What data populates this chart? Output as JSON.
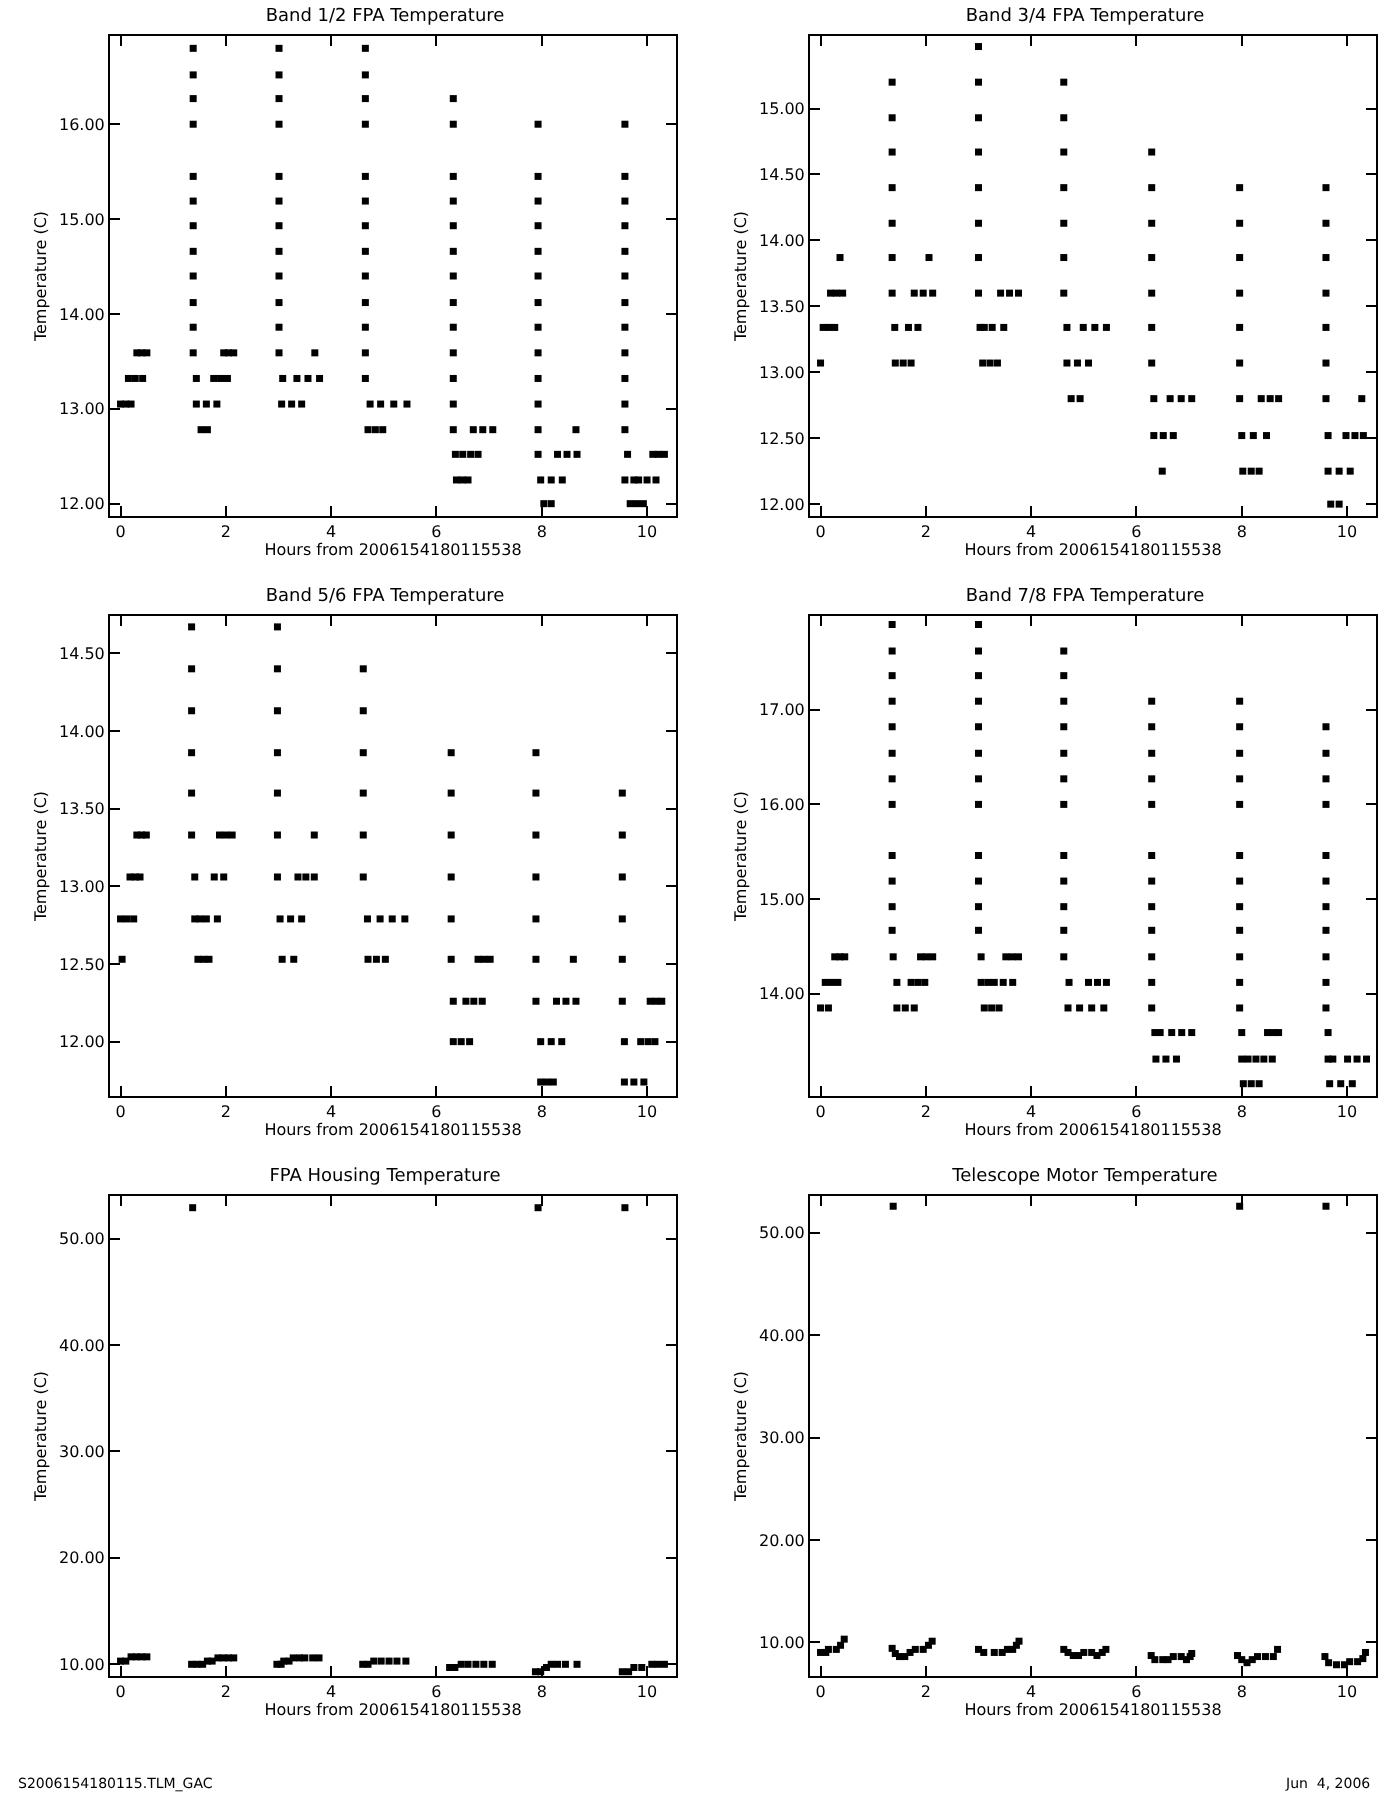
{
  "chart_data": [
    {
      "type": "scatter",
      "title": "Band 1/2 FPA Temperature",
      "xlabel": "Hours from 2006154180115538",
      "ylabel": "Temperature (C)",
      "marker": "square",
      "grid": false,
      "xlim": [
        -0.2,
        10.55
      ],
      "xticks": [
        0,
        2,
        4,
        6,
        8,
        10
      ],
      "ylim": [
        11.87,
        16.93
      ],
      "yticks": [
        {
          "value": 12,
          "label": "12.00"
        },
        {
          "value": 13,
          "label": "13.00"
        },
        {
          "value": 14,
          "label": "14.00"
        },
        {
          "value": 15,
          "label": "15.00"
        },
        {
          "value": 16,
          "label": "16.00"
        }
      ],
      "series": [
        {
          "color": "#000000",
          "x": [
            0,
            0.1,
            0.2,
            0.15,
            0.28,
            0.42,
            0.31,
            0.4,
            0.5
          ],
          "values": [
            13.05,
            13.05,
            13.05,
            13.32,
            13.32,
            13.32,
            13.59,
            13.59,
            13.59
          ]
        },
        {
          "color": "#000000",
          "x": [
            1.38,
            1.38,
            1.38,
            1.38,
            1.38,
            1.38,
            1.38,
            1.38,
            1.38,
            1.38,
            1.38,
            1.38,
            1.44
          ],
          "values": [
            16.8,
            16.52,
            16.27,
            16.0,
            15.45,
            15.19,
            14.93,
            14.66,
            14.4,
            14.12,
            13.86,
            13.59,
            13.32
          ]
        },
        {
          "color": "#000000",
          "x": [
            1.44,
            1.63,
            1.83,
            1.53,
            1.65,
            1.77,
            1.9,
            2.03,
            1.96,
            2.05,
            2.15
          ],
          "values": [
            13.05,
            13.05,
            13.05,
            12.78,
            12.78,
            13.32,
            13.32,
            13.32,
            13.59,
            13.59,
            13.59
          ]
        },
        {
          "color": "#000000",
          "x": [
            3.01,
            3.01,
            3.01,
            3.01,
            3.01,
            3.01,
            3.01,
            3.01,
            3.01,
            3.01,
            3.01,
            3.01,
            3.08
          ],
          "values": [
            16.8,
            16.52,
            16.27,
            16.0,
            15.45,
            15.19,
            14.93,
            14.66,
            14.4,
            14.12,
            13.86,
            13.59,
            13.32
          ]
        },
        {
          "color": "#000000",
          "x": [
            3.06,
            3.25,
            3.44,
            3.35,
            3.56,
            3.78,
            3.69
          ],
          "values": [
            13.05,
            13.05,
            13.05,
            13.32,
            13.32,
            13.32,
            13.59
          ]
        },
        {
          "color": "#000000",
          "x": [
            4.65,
            4.65,
            4.65,
            4.65,
            4.65,
            4.65,
            4.65,
            4.65,
            4.65,
            4.65,
            4.65,
            4.65,
            4.65,
            4.74
          ],
          "values": [
            16.8,
            16.52,
            16.27,
            16.0,
            15.45,
            15.19,
            14.93,
            14.66,
            14.4,
            14.12,
            13.86,
            13.59,
            13.32,
            13.05
          ]
        },
        {
          "color": "#000000",
          "x": [
            4.7,
            4.84,
            4.98,
            4.94,
            5.19,
            5.44
          ],
          "values": [
            12.78,
            12.78,
            12.78,
            13.05,
            13.05,
            13.05
          ]
        },
        {
          "color": "#000000",
          "x": [
            6.32,
            6.32,
            6.32,
            6.32,
            6.32,
            6.32,
            6.32,
            6.32,
            6.32,
            6.32,
            6.32,
            6.32,
            6.32
          ],
          "values": [
            16.27,
            16.0,
            15.45,
            15.19,
            14.93,
            14.66,
            14.4,
            14.12,
            13.86,
            13.59,
            13.32,
            13.05,
            12.78
          ]
        },
        {
          "color": "#000000",
          "x": [
            6.36,
            6.5,
            6.38,
            6.49,
            6.6,
            6.65,
            6.79,
            6.7,
            6.88,
            7.07
          ],
          "values": [
            12.52,
            12.52,
            12.25,
            12.25,
            12.25,
            12.52,
            12.52,
            12.78,
            12.78,
            12.78
          ]
        },
        {
          "color": "#000000",
          "x": [
            7.93,
            7.93,
            7.93,
            7.93,
            7.93,
            7.93,
            7.93,
            7.93,
            7.93,
            7.93,
            7.93,
            7.93,
            7.93
          ],
          "values": [
            16.0,
            15.45,
            15.19,
            14.93,
            14.66,
            14.4,
            14.12,
            13.86,
            13.59,
            13.32,
            13.05,
            12.78,
            12.52
          ]
        },
        {
          "color": "#000000",
          "x": [
            7.98,
            8.18,
            8.39,
            8.04,
            8.18,
            8.3,
            8.48,
            8.67,
            8.65
          ],
          "values": [
            12.25,
            12.25,
            12.25,
            12.0,
            12.0,
            12.52,
            12.52,
            12.52,
            12.78
          ]
        },
        {
          "color": "#000000",
          "x": [
            9.58,
            9.58,
            9.58,
            9.58,
            9.58,
            9.58,
            9.58,
            9.58,
            9.58,
            9.58,
            9.58,
            9.58
          ],
          "values": [
            16.0,
            15.45,
            15.19,
            14.93,
            14.66,
            14.4,
            14.12,
            13.86,
            13.59,
            13.32,
            13.05,
            12.78
          ]
        },
        {
          "color": "#000000",
          "x": [
            9.63,
            9.58,
            9.75,
            9.68,
            9.8,
            9.93,
            9.84,
            10.0,
            10.17,
            10.11,
            10.22,
            10.33
          ],
          "values": [
            12.52,
            12.25,
            12.25,
            12.0,
            12.0,
            12.0,
            12.25,
            12.25,
            12.25,
            12.52,
            12.52,
            12.52
          ]
        }
      ]
    },
    {
      "type": "scatter",
      "title": "Band 3/4 FPA Temperature",
      "xlabel": "Hours from 2006154180115538",
      "ylabel": "Temperature (C)",
      "marker": "square",
      "grid": false,
      "xlim": [
        -0.2,
        10.55
      ],
      "xticks": [
        0,
        2,
        4,
        6,
        8,
        10
      ],
      "ylim": [
        11.91,
        15.55
      ],
      "yticks": [
        {
          "value": 12,
          "label": "12.00"
        },
        {
          "value": 12.5,
          "label": "12.50"
        },
        {
          "value": 13,
          "label": "13.00"
        },
        {
          "value": 13.5,
          "label": "13.50"
        },
        {
          "value": 14,
          "label": "14.00"
        },
        {
          "value": 14.5,
          "label": "14.50"
        },
        {
          "value": 15,
          "label": "15.00"
        }
      ],
      "series": [
        {
          "color": "#000000",
          "x": [
            0,
            0.05,
            0.16,
            0.27,
            0.19,
            0.3,
            0.42,
            0.37
          ],
          "values": [
            13.07,
            13.34,
            13.34,
            13.34,
            13.6,
            13.6,
            13.6,
            13.87
          ]
        },
        {
          "color": "#000000",
          "x": [
            1.36,
            1.36,
            1.36,
            1.36,
            1.36,
            1.36,
            1.36,
            1.41
          ],
          "values": [
            15.2,
            14.93,
            14.67,
            14.4,
            14.13,
            13.87,
            13.6,
            13.34
          ]
        },
        {
          "color": "#000000",
          "x": [
            1.42,
            1.57,
            1.72,
            1.67,
            1.85,
            1.78,
            1.95,
            2.13,
            2.06
          ],
          "values": [
            13.07,
            13.07,
            13.07,
            13.34,
            13.34,
            13.6,
            13.6,
            13.6,
            13.87
          ]
        },
        {
          "color": "#000000",
          "x": [
            3.0,
            3.0,
            3.0,
            3.0,
            3.0,
            3.0,
            3.0,
            3.0,
            3.03,
            3.11
          ],
          "values": [
            15.47,
            15.2,
            14.93,
            14.67,
            14.4,
            14.13,
            13.87,
            13.6,
            13.34,
            13.34
          ]
        },
        {
          "color": "#000000",
          "x": [
            3.08,
            3.22,
            3.36,
            3.26,
            3.48,
            3.42,
            3.59,
            3.76
          ],
          "values": [
            13.07,
            13.07,
            13.07,
            13.34,
            13.34,
            13.6,
            13.6,
            13.6
          ]
        },
        {
          "color": "#000000",
          "x": [
            4.62,
            4.62,
            4.62,
            4.62,
            4.62,
            4.62,
            4.62,
            4.68
          ],
          "values": [
            15.2,
            14.93,
            14.67,
            14.4,
            14.13,
            13.87,
            13.6,
            13.34
          ]
        },
        {
          "color": "#000000",
          "x": [
            4.68,
            4.88,
            5.09,
            4.76,
            4.93,
            4.99,
            5.21,
            5.43
          ],
          "values": [
            13.07,
            13.07,
            13.07,
            12.8,
            12.8,
            13.34,
            13.34,
            13.34
          ]
        },
        {
          "color": "#000000",
          "x": [
            6.29,
            6.29,
            6.29,
            6.29,
            6.29,
            6.29,
            6.29,
            6.33
          ],
          "values": [
            14.67,
            14.4,
            14.13,
            13.87,
            13.6,
            13.34,
            13.07,
            12.8
          ]
        },
        {
          "color": "#000000",
          "x": [
            6.33,
            6.51,
            6.7,
            6.49,
            6.64,
            6.85,
            7.05
          ],
          "values": [
            12.52,
            12.52,
            12.52,
            12.25,
            12.8,
            12.8,
            12.8
          ]
        },
        {
          "color": "#000000",
          "x": [
            7.96,
            7.96,
            7.96,
            7.96,
            7.96,
            7.96,
            7.96,
            8.0
          ],
          "values": [
            14.4,
            14.13,
            13.87,
            13.6,
            13.34,
            13.07,
            12.8,
            12.52
          ]
        },
        {
          "color": "#000000",
          "x": [
            8.02,
            8.18,
            8.33,
            8.22,
            8.47,
            8.37,
            8.54,
            8.7
          ],
          "values": [
            12.25,
            12.25,
            12.25,
            12.52,
            12.52,
            12.8,
            12.8,
            12.8
          ]
        },
        {
          "color": "#000000",
          "x": [
            9.6,
            9.6,
            9.6,
            9.6,
            9.6,
            9.6,
            9.6,
            9.64
          ],
          "values": [
            14.4,
            14.13,
            13.87,
            13.6,
            13.34,
            13.07,
            12.8,
            12.52
          ]
        },
        {
          "color": "#000000",
          "x": [
            9.64,
            9.85,
            10.06,
            9.69,
            9.85,
            9.98,
            10.15,
            10.31,
            10.28
          ],
          "values": [
            12.25,
            12.25,
            12.25,
            12.0,
            12.0,
            12.52,
            12.52,
            12.52,
            12.8
          ]
        }
      ]
    },
    {
      "type": "scatter",
      "title": "Band 5/6 FPA Temperature",
      "xlabel": "Hours from 2006154180115538",
      "ylabel": "Temperature (C)",
      "marker": "square",
      "grid": false,
      "xlim": [
        -0.2,
        10.55
      ],
      "xticks": [
        0,
        2,
        4,
        6,
        8,
        10
      ],
      "ylim": [
        11.65,
        14.74
      ],
      "yticks": [
        {
          "value": 12,
          "label": "12.00"
        },
        {
          "value": 12.5,
          "label": "12.50"
        },
        {
          "value": 13,
          "label": "13.00"
        },
        {
          "value": 13.5,
          "label": "13.50"
        },
        {
          "value": 14,
          "label": "14.00"
        },
        {
          "value": 14.5,
          "label": "14.50"
        }
      ],
      "series": [
        {
          "color": "#000000",
          "x": [
            0.03,
            0,
            0.12,
            0.25,
            0.18,
            0.28,
            0.37,
            0.31,
            0.4,
            0.49
          ],
          "values": [
            12.53,
            12.79,
            12.79,
            12.79,
            13.06,
            13.06,
            13.06,
            13.33,
            13.33,
            13.33
          ]
        },
        {
          "color": "#000000",
          "x": [
            1.35,
            1.35,
            1.35,
            1.35,
            1.35,
            1.35,
            1.41,
            1.41,
            1.51
          ],
          "values": [
            14.67,
            14.4,
            14.13,
            13.86,
            13.6,
            13.33,
            13.06,
            12.79,
            12.79
          ]
        },
        {
          "color": "#000000",
          "x": [
            1.47,
            1.58,
            1.68,
            1.63,
            1.84,
            1.78,
            1.96,
            1.88,
            2.0,
            2.12
          ],
          "values": [
            12.53,
            12.53,
            12.53,
            12.79,
            12.79,
            13.06,
            13.06,
            13.33,
            13.33,
            13.33
          ]
        },
        {
          "color": "#000000",
          "x": [
            2.98,
            2.98,
            2.98,
            2.98,
            2.98,
            2.98,
            2.98
          ],
          "values": [
            14.67,
            14.4,
            14.13,
            13.86,
            13.6,
            13.33,
            13.06
          ]
        },
        {
          "color": "#000000",
          "x": [
            3.03,
            3.23,
            3.44,
            3.07,
            3.29,
            3.37,
            3.52,
            3.68,
            3.68
          ],
          "values": [
            12.79,
            12.79,
            12.79,
            12.53,
            12.53,
            13.06,
            13.06,
            13.06,
            13.33
          ]
        },
        {
          "color": "#000000",
          "x": [
            4.61,
            4.61,
            4.61,
            4.61,
            4.61,
            4.61,
            4.69
          ],
          "values": [
            14.4,
            14.13,
            13.86,
            13.6,
            13.33,
            13.06,
            12.79
          ]
        },
        {
          "color": "#000000",
          "x": [
            4.7,
            4.86,
            5.03,
            4.93,
            5.16,
            5.4
          ],
          "values": [
            12.53,
            12.53,
            12.53,
            12.79,
            12.79,
            12.79
          ]
        },
        {
          "color": "#000000",
          "x": [
            6.28,
            6.28,
            6.28,
            6.28,
            6.28,
            6.28,
            6.32
          ],
          "values": [
            13.86,
            13.6,
            13.33,
            13.06,
            12.79,
            12.53,
            12.26
          ]
        },
        {
          "color": "#000000",
          "x": [
            6.32,
            6.47,
            6.63,
            6.56,
            6.71,
            6.87,
            6.79,
            6.9,
            7.02
          ],
          "values": [
            12.0,
            12.0,
            12.0,
            12.26,
            12.26,
            12.26,
            12.53,
            12.53,
            12.53
          ]
        },
        {
          "color": "#000000",
          "x": [
            7.89,
            7.89,
            7.89,
            7.89,
            7.89,
            7.89,
            7.89,
            7.98
          ],
          "values": [
            13.86,
            13.6,
            13.33,
            13.06,
            12.79,
            12.53,
            12.26,
            12.0
          ]
        },
        {
          "color": "#000000",
          "x": [
            7.98,
            8.1,
            8.22,
            8.18,
            8.38,
            8.28,
            8.46,
            8.65,
            8.6
          ],
          "values": [
            11.74,
            11.74,
            11.74,
            12.0,
            12.0,
            12.26,
            12.26,
            12.26,
            12.53
          ]
        },
        {
          "color": "#000000",
          "x": [
            9.53,
            9.53,
            9.53,
            9.53,
            9.53,
            9.53,
            9.57
          ],
          "values": [
            13.6,
            13.33,
            13.06,
            12.79,
            12.53,
            12.26,
            12.0
          ]
        },
        {
          "color": "#000000",
          "x": [
            9.57,
            9.75,
            9.94,
            9.88,
            10.02,
            10.15,
            10.06,
            10.17,
            10.28
          ],
          "values": [
            11.74,
            11.74,
            11.74,
            12.0,
            12.0,
            12.0,
            12.26,
            12.26,
            12.26
          ]
        }
      ]
    },
    {
      "type": "scatter",
      "title": "Band 7/8 FPA Temperature",
      "xlabel": "Hours from 2006154180115538",
      "ylabel": "Temperature (C)",
      "marker": "square",
      "grid": false,
      "xlim": [
        -0.2,
        10.55
      ],
      "xticks": [
        0,
        2,
        4,
        6,
        8,
        10
      ],
      "ylim": [
        12.92,
        17.99
      ],
      "yticks": [
        {
          "value": 14,
          "label": "14.00"
        },
        {
          "value": 15,
          "label": "15.00"
        },
        {
          "value": 16,
          "label": "16.00"
        },
        {
          "value": 17,
          "label": "17.00"
        }
      ],
      "series": [
        {
          "color": "#000000",
          "x": [
            0,
            0.15,
            0.09,
            0.21,
            0.33,
            0.27,
            0.37,
            0.46
          ],
          "values": [
            13.85,
            13.85,
            14.12,
            14.12,
            14.12,
            14.39,
            14.39,
            14.39
          ]
        },
        {
          "color": "#000000",
          "x": [
            1.36,
            1.36,
            1.36,
            1.36,
            1.36,
            1.36,
            1.36,
            1.36,
            1.36,
            1.36,
            1.36,
            1.36,
            1.38,
            1.45
          ],
          "values": [
            17.9,
            17.62,
            17.36,
            17.09,
            16.82,
            16.54,
            16.27,
            16.0,
            15.46,
            15.19,
            14.92,
            14.67,
            14.39,
            14.12
          ]
        },
        {
          "color": "#000000",
          "x": [
            1.45,
            1.61,
            1.78,
            1.72,
            1.85,
            1.98,
            1.9,
            2.01,
            2.13
          ],
          "values": [
            13.85,
            13.85,
            13.85,
            14.12,
            14.12,
            14.12,
            14.39,
            14.39,
            14.39
          ]
        },
        {
          "color": "#000000",
          "x": [
            3.0,
            3.0,
            3.0,
            3.0,
            3.0,
            3.0,
            3.0,
            3.0,
            3.0,
            3.0,
            3.0,
            3.0,
            3.05
          ],
          "values": [
            17.9,
            17.62,
            17.36,
            17.09,
            16.82,
            16.54,
            16.27,
            16.0,
            15.46,
            15.19,
            14.92,
            14.67,
            14.39
          ]
        },
        {
          "color": "#000000",
          "x": [
            3.05,
            3.18,
            3.11,
            3.25,
            3.39,
            3.3,
            3.47,
            3.65,
            3.52,
            3.64,
            3.76
          ],
          "values": [
            14.12,
            14.12,
            13.85,
            13.85,
            13.85,
            14.12,
            14.12,
            14.12,
            14.39,
            14.39,
            14.39
          ]
        },
        {
          "color": "#000000",
          "x": [
            4.62,
            4.62,
            4.62,
            4.62,
            4.62,
            4.62,
            4.62,
            4.62,
            4.62,
            4.62,
            4.62,
            4.62,
            4.72
          ],
          "values": [
            17.62,
            17.36,
            17.09,
            16.82,
            16.54,
            16.27,
            16.0,
            15.46,
            15.19,
            14.92,
            14.67,
            14.39,
            14.12
          ]
        },
        {
          "color": "#000000",
          "x": [
            4.7,
            4.92,
            5.15,
            5.09,
            5.26,
            5.43,
            5.38
          ],
          "values": [
            13.85,
            13.85,
            13.85,
            14.12,
            14.12,
            14.12,
            13.85
          ]
        },
        {
          "color": "#000000",
          "x": [
            6.29,
            6.29,
            6.29,
            6.29,
            6.29,
            6.29,
            6.29,
            6.29,
            6.29,
            6.29,
            6.29,
            6.29
          ],
          "values": [
            17.09,
            16.82,
            16.54,
            16.27,
            16.0,
            15.46,
            15.19,
            14.92,
            14.67,
            14.39,
            14.12,
            13.85
          ]
        },
        {
          "color": "#000000",
          "x": [
            6.35,
            6.45,
            6.37,
            6.56,
            6.76,
            6.67,
            6.86,
            7.05
          ],
          "values": [
            13.59,
            13.59,
            13.31,
            13.31,
            13.31,
            13.59,
            13.59,
            13.59
          ]
        },
        {
          "color": "#000000",
          "x": [
            7.96,
            7.96,
            7.96,
            7.96,
            7.96,
            7.96,
            7.96,
            7.96,
            7.96,
            7.96,
            7.96,
            7.96,
            8.0
          ],
          "values": [
            17.09,
            16.82,
            16.54,
            16.27,
            16.0,
            15.46,
            15.19,
            14.92,
            14.67,
            14.39,
            14.12,
            13.85,
            13.59
          ]
        },
        {
          "color": "#000000",
          "x": [
            8.0,
            8.12,
            8.03,
            8.18,
            8.33,
            8.27,
            8.42,
            8.58,
            8.49,
            8.6,
            8.7
          ],
          "values": [
            13.31,
            13.31,
            13.05,
            13.05,
            13.05,
            13.31,
            13.31,
            13.31,
            13.59,
            13.59,
            13.59
          ]
        },
        {
          "color": "#000000",
          "x": [
            9.6,
            9.6,
            9.6,
            9.6,
            9.6,
            9.6,
            9.6,
            9.6,
            9.6,
            9.6,
            9.6,
            9.64
          ],
          "values": [
            16.82,
            16.54,
            16.27,
            16.0,
            15.46,
            15.19,
            14.92,
            14.67,
            14.39,
            14.12,
            13.85,
            13.59
          ]
        },
        {
          "color": "#000000",
          "x": [
            9.64,
            9.73,
            9.67,
            9.88,
            10.1,
            10.01,
            10.19,
            10.37
          ],
          "values": [
            13.31,
            13.31,
            13.05,
            13.05,
            13.05,
            13.31,
            13.31,
            13.31
          ]
        }
      ]
    },
    {
      "type": "scatter",
      "title": "FPA Housing Temperature",
      "xlabel": "Hours from 2006154180115538",
      "ylabel": "Temperature (C)",
      "marker": "square",
      "grid": false,
      "xlim": [
        -0.2,
        10.55
      ],
      "xticks": [
        0,
        2,
        4,
        6,
        8,
        10
      ],
      "ylim": [
        8.9,
        54
      ],
      "yticks": [
        {
          "value": 10,
          "label": "10.00"
        },
        {
          "value": 20,
          "label": "20.00"
        },
        {
          "value": 30,
          "label": "30.00"
        },
        {
          "value": 40,
          "label": "40.00"
        },
        {
          "value": 50,
          "label": "50.00"
        }
      ],
      "annotations": [
        "S2006154180115.TLM_GAC"
      ],
      "series": [
        {
          "color": "#000000",
          "x": [
            1.37,
            7.93,
            9.58
          ],
          "values": [
            52.9,
            52.9,
            52.9
          ]
        },
        {
          "color": "#000000",
          "x": [
            0,
            0.1,
            0.2,
            0.3,
            0.4,
            0.5
          ],
          "values": [
            10.3,
            10.3,
            10.7,
            10.7,
            10.7,
            10.7
          ]
        },
        {
          "color": "#000000",
          "x": [
            1.35,
            1.45,
            1.56,
            1.65,
            1.74,
            1.85,
            1.95,
            2.05,
            2.15
          ],
          "values": [
            10.0,
            10.0,
            10.0,
            10.3,
            10.3,
            10.6,
            10.6,
            10.6,
            10.6
          ]
        },
        {
          "color": "#000000",
          "x": [
            2.97,
            3.05,
            3.1,
            3.2,
            3.28,
            3.4,
            3.5,
            3.65,
            3.77
          ],
          "values": [
            10.0,
            10.0,
            10.3,
            10.3,
            10.6,
            10.6,
            10.6,
            10.6,
            10.6
          ]
        },
        {
          "color": "#000000",
          "x": [
            4.6,
            4.7,
            4.81,
            4.95,
            5.1,
            5.25,
            5.42
          ],
          "values": [
            10.0,
            10.0,
            10.3,
            10.3,
            10.3,
            10.3,
            10.3
          ]
        },
        {
          "color": "#000000",
          "x": [
            6.25,
            6.35,
            6.47,
            6.6,
            6.75,
            6.9,
            7.06
          ],
          "values": [
            9.7,
            9.7,
            10.0,
            10.0,
            10.0,
            10.0,
            10.0
          ]
        },
        {
          "color": "#000000",
          "x": [
            7.88,
            7.98,
            8.09,
            8.18,
            8.3,
            8.45,
            8.67
          ],
          "values": [
            9.3,
            9.3,
            9.7,
            10.0,
            10.0,
            10.0,
            10.0
          ]
        },
        {
          "color": "#000000",
          "x": [
            9.53,
            9.65,
            9.75,
            9.9,
            10.09,
            10.2,
            10.33
          ],
          "values": [
            9.3,
            9.3,
            9.7,
            9.7,
            10.0,
            10.0,
            10.0
          ]
        }
      ]
    },
    {
      "type": "scatter",
      "title": "Telescope Motor Temperature",
      "xlabel": "Hours from 2006154180115538",
      "ylabel": "Temperature (C)",
      "marker": "square",
      "grid": false,
      "xlim": [
        -0.2,
        10.55
      ],
      "xticks": [
        0,
        2,
        4,
        6,
        8,
        10
      ],
      "ylim": [
        6.7,
        53.6
      ],
      "yticks": [
        {
          "value": 10,
          "label": "10.00"
        },
        {
          "value": 20,
          "label": "20.00"
        },
        {
          "value": 30,
          "label": "30.00"
        },
        {
          "value": 40,
          "label": "40.00"
        },
        {
          "value": 50,
          "label": "50.00"
        }
      ],
      "annotations": [
        "Jun  4, 2006"
      ],
      "series": [
        {
          "color": "#000000",
          "x": [
            1.38,
            7.96,
            9.6
          ],
          "values": [
            52.6,
            52.6,
            52.6
          ]
        },
        {
          "color": "#000000",
          "x": [
            0,
            0.1,
            0.15,
            0.3,
            0.38,
            0.45
          ],
          "values": [
            9.0,
            9.0,
            9.3,
            9.3,
            9.7,
            10.3
          ]
        },
        {
          "color": "#000000",
          "x": [
            1.36,
            1.42,
            1.5,
            1.6,
            1.7,
            1.8,
            1.95,
            2.05,
            2.12
          ],
          "values": [
            9.4,
            8.9,
            8.6,
            8.6,
            9.0,
            9.3,
            9.3,
            9.7,
            10.1
          ]
        },
        {
          "color": "#000000",
          "x": [
            3.0,
            3.1,
            3.3,
            3.45,
            3.55,
            3.65,
            3.72,
            3.77
          ],
          "values": [
            9.3,
            9.0,
            9.0,
            9.0,
            9.3,
            9.3,
            9.7,
            10.1
          ]
        },
        {
          "color": "#000000",
          "x": [
            4.62,
            4.7,
            4.8,
            4.9,
            5.0,
            5.15,
            5.25,
            5.35,
            5.42
          ],
          "values": [
            9.3,
            9.0,
            8.7,
            8.7,
            9.0,
            9.0,
            8.7,
            9.0,
            9.3
          ]
        },
        {
          "color": "#000000",
          "x": [
            6.28,
            6.35,
            6.5,
            6.6,
            6.7,
            6.85,
            6.95,
            7.02,
            7.05
          ],
          "values": [
            8.7,
            8.3,
            8.3,
            8.3,
            8.6,
            8.6,
            8.3,
            8.6,
            8.9
          ]
        },
        {
          "color": "#000000",
          "x": [
            7.92,
            8.0,
            8.1,
            8.2,
            8.3,
            8.45,
            8.6,
            8.68
          ],
          "values": [
            8.7,
            8.3,
            8.0,
            8.3,
            8.6,
            8.6,
            8.6,
            9.3
          ]
        },
        {
          "color": "#000000",
          "x": [
            9.58,
            9.65,
            9.8,
            9.95,
            10.05,
            10.2,
            10.3,
            10.35
          ],
          "values": [
            8.6,
            8.0,
            7.8,
            7.8,
            8.1,
            8.1,
            8.4,
            9.0
          ]
        }
      ]
    }
  ]
}
